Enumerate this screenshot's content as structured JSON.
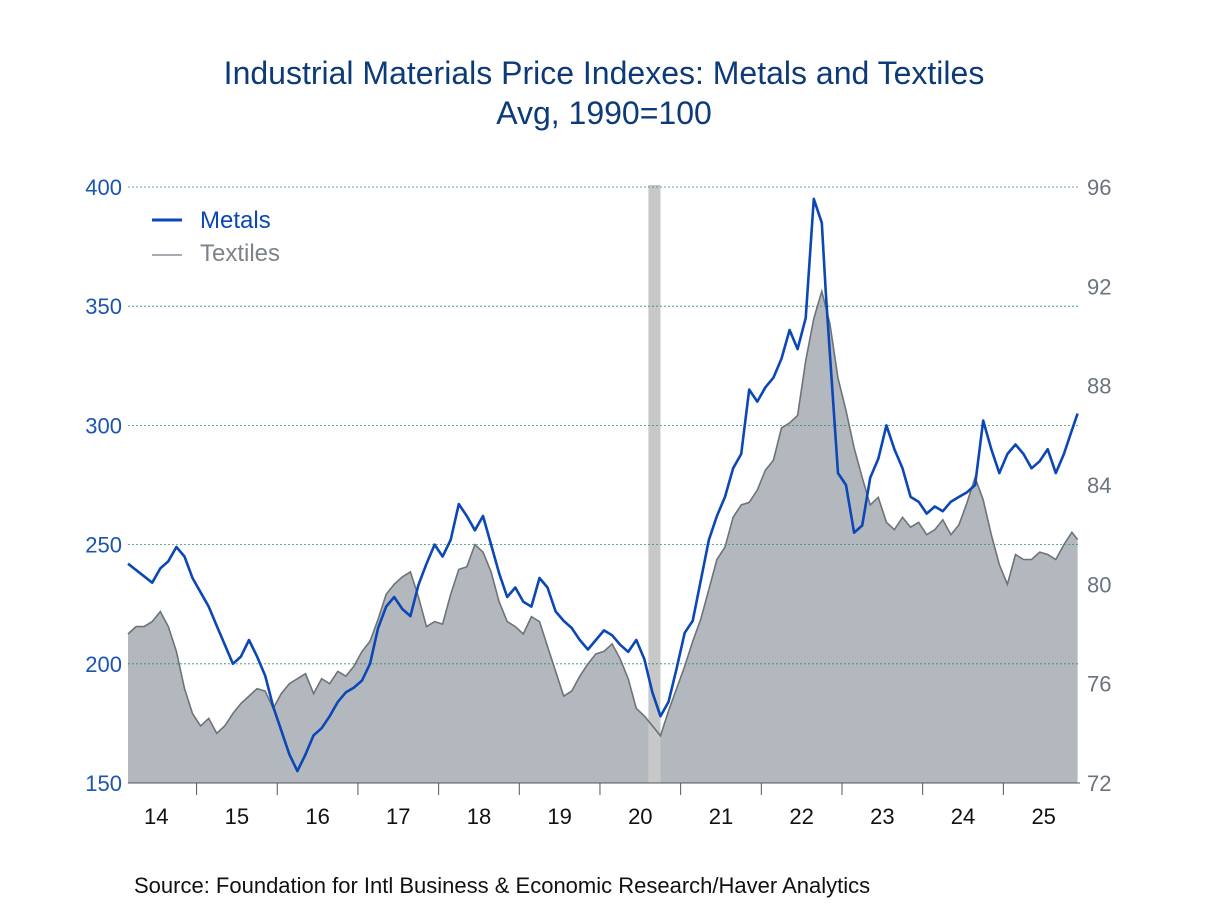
{
  "chart_data": {
    "type": "area",
    "title": "Industrial Materials Price Indexes: Metals and Textiles",
    "subtitle": "Avg, 1990=100",
    "source": "Source:  Foundation for Intl Business & Economic Research/Haver Analytics",
    "x_unit": "year",
    "xlim": [
      2013.65,
      2025.45
    ],
    "x_ticks": [
      {
        "value": 2014,
        "label": "14"
      },
      {
        "value": 2015,
        "label": "15"
      },
      {
        "value": 2016,
        "label": "16"
      },
      {
        "value": 2017,
        "label": "17"
      },
      {
        "value": 2018,
        "label": "18"
      },
      {
        "value": 2019,
        "label": "19"
      },
      {
        "value": 2020,
        "label": "20"
      },
      {
        "value": 2021,
        "label": "21"
      },
      {
        "value": 2022,
        "label": "22"
      },
      {
        "value": 2023,
        "label": "23"
      },
      {
        "value": 2024,
        "label": "24"
      },
      {
        "value": 2025,
        "label": "25"
      }
    ],
    "y_left": {
      "ylim": [
        150,
        400
      ],
      "ticks": [
        150,
        200,
        250,
        300,
        350,
        400
      ],
      "color": "#1b55b0"
    },
    "y_right": {
      "ylim": [
        72,
        96
      ],
      "ticks": [
        72,
        76,
        80,
        84,
        88,
        92,
        96
      ],
      "color": "#6b7380"
    },
    "grid": true,
    "legend_position": "top-left",
    "recession": {
      "start": 2020.1,
      "end": 2020.25
    },
    "series": [
      {
        "name": "Metals",
        "axis": "left",
        "style": "line",
        "color": "#0b47b5",
        "points": [
          [
            2013.65,
            242
          ],
          [
            2013.8,
            238
          ],
          [
            2013.95,
            234
          ],
          [
            2014.05,
            240
          ],
          [
            2014.15,
            243
          ],
          [
            2014.25,
            249
          ],
          [
            2014.35,
            245
          ],
          [
            2014.45,
            236
          ],
          [
            2014.55,
            230
          ],
          [
            2014.65,
            224
          ],
          [
            2014.75,
            216
          ],
          [
            2014.85,
            208
          ],
          [
            2014.95,
            200
          ],
          [
            2015.05,
            203
          ],
          [
            2015.15,
            210
          ],
          [
            2015.25,
            203
          ],
          [
            2015.35,
            195
          ],
          [
            2015.45,
            182
          ],
          [
            2015.55,
            172
          ],
          [
            2015.65,
            162
          ],
          [
            2015.75,
            155
          ],
          [
            2015.85,
            162
          ],
          [
            2015.95,
            170
          ],
          [
            2016.05,
            173
          ],
          [
            2016.15,
            178
          ],
          [
            2016.25,
            184
          ],
          [
            2016.35,
            188
          ],
          [
            2016.45,
            190
          ],
          [
            2016.55,
            193
          ],
          [
            2016.65,
            200
          ],
          [
            2016.75,
            215
          ],
          [
            2016.85,
            224
          ],
          [
            2016.95,
            228
          ],
          [
            2017.05,
            223
          ],
          [
            2017.15,
            220
          ],
          [
            2017.25,
            233
          ],
          [
            2017.35,
            242
          ],
          [
            2017.45,
            250
          ],
          [
            2017.55,
            245
          ],
          [
            2017.65,
            252
          ],
          [
            2017.75,
            267
          ],
          [
            2017.85,
            262
          ],
          [
            2017.95,
            256
          ],
          [
            2018.05,
            262
          ],
          [
            2018.15,
            250
          ],
          [
            2018.25,
            238
          ],
          [
            2018.35,
            228
          ],
          [
            2018.45,
            232
          ],
          [
            2018.55,
            226
          ],
          [
            2018.65,
            224
          ],
          [
            2018.75,
            236
          ],
          [
            2018.85,
            232
          ],
          [
            2018.95,
            222
          ],
          [
            2019.05,
            218
          ],
          [
            2019.15,
            215
          ],
          [
            2019.25,
            210
          ],
          [
            2019.35,
            206
          ],
          [
            2019.45,
            210
          ],
          [
            2019.55,
            214
          ],
          [
            2019.65,
            212
          ],
          [
            2019.75,
            208
          ],
          [
            2019.85,
            205
          ],
          [
            2019.95,
            210
          ],
          [
            2020.05,
            202
          ],
          [
            2020.15,
            188
          ],
          [
            2020.25,
            178
          ],
          [
            2020.35,
            184
          ],
          [
            2020.45,
            198
          ],
          [
            2020.55,
            213
          ],
          [
            2020.65,
            218
          ],
          [
            2020.75,
            235
          ],
          [
            2020.85,
            252
          ],
          [
            2020.95,
            262
          ],
          [
            2021.05,
            270
          ],
          [
            2021.15,
            282
          ],
          [
            2021.25,
            288
          ],
          [
            2021.35,
            315
          ],
          [
            2021.45,
            310
          ],
          [
            2021.55,
            316
          ],
          [
            2021.65,
            320
          ],
          [
            2021.75,
            328
          ],
          [
            2021.85,
            340
          ],
          [
            2021.95,
            332
          ],
          [
            2022.05,
            345
          ],
          [
            2022.15,
            395
          ],
          [
            2022.25,
            385
          ],
          [
            2022.3,
            355
          ],
          [
            2022.35,
            330
          ],
          [
            2022.45,
            280
          ],
          [
            2022.55,
            275
          ],
          [
            2022.65,
            255
          ],
          [
            2022.75,
            258
          ],
          [
            2022.85,
            278
          ],
          [
            2022.95,
            286
          ],
          [
            2023.05,
            300
          ],
          [
            2023.15,
            290
          ],
          [
            2023.25,
            282
          ],
          [
            2023.35,
            270
          ],
          [
            2023.45,
            268
          ],
          [
            2023.55,
            263
          ],
          [
            2023.65,
            266
          ],
          [
            2023.75,
            264
          ],
          [
            2023.85,
            268
          ],
          [
            2023.95,
            270
          ],
          [
            2024.05,
            272
          ],
          [
            2024.15,
            275
          ],
          [
            2024.25,
            302
          ],
          [
            2024.35,
            290
          ],
          [
            2024.45,
            280
          ],
          [
            2024.55,
            288
          ],
          [
            2024.65,
            292
          ],
          [
            2024.75,
            288
          ],
          [
            2024.85,
            282
          ],
          [
            2024.95,
            285
          ],
          [
            2025.05,
            290
          ],
          [
            2025.15,
            280
          ],
          [
            2025.25,
            288
          ],
          [
            2025.35,
            298
          ],
          [
            2025.42,
            305
          ]
        ]
      },
      {
        "name": "Textiles",
        "axis": "right",
        "style": "area",
        "color": "#6d7378",
        "fill": "#b3b8bf",
        "points": [
          [
            2013.65,
            78.0
          ],
          [
            2013.75,
            78.3
          ],
          [
            2013.85,
            78.3
          ],
          [
            2013.95,
            78.5
          ],
          [
            2014.05,
            78.9
          ],
          [
            2014.15,
            78.3
          ],
          [
            2014.25,
            77.3
          ],
          [
            2014.35,
            75.8
          ],
          [
            2014.45,
            74.8
          ],
          [
            2014.55,
            74.3
          ],
          [
            2014.65,
            74.6
          ],
          [
            2014.75,
            74.0
          ],
          [
            2014.85,
            74.3
          ],
          [
            2014.95,
            74.8
          ],
          [
            2015.05,
            75.2
          ],
          [
            2015.15,
            75.5
          ],
          [
            2015.25,
            75.8
          ],
          [
            2015.35,
            75.7
          ],
          [
            2015.45,
            75.0
          ],
          [
            2015.55,
            75.6
          ],
          [
            2015.65,
            76.0
          ],
          [
            2015.75,
            76.2
          ],
          [
            2015.85,
            76.4
          ],
          [
            2015.95,
            75.6
          ],
          [
            2016.05,
            76.2
          ],
          [
            2016.15,
            76.0
          ],
          [
            2016.25,
            76.5
          ],
          [
            2016.35,
            76.3
          ],
          [
            2016.45,
            76.7
          ],
          [
            2016.55,
            77.3
          ],
          [
            2016.65,
            77.7
          ],
          [
            2016.75,
            78.6
          ],
          [
            2016.85,
            79.6
          ],
          [
            2016.95,
            80.0
          ],
          [
            2017.05,
            80.3
          ],
          [
            2017.15,
            80.5
          ],
          [
            2017.25,
            79.5
          ],
          [
            2017.35,
            78.3
          ],
          [
            2017.45,
            78.5
          ],
          [
            2017.55,
            78.4
          ],
          [
            2017.65,
            79.6
          ],
          [
            2017.75,
            80.6
          ],
          [
            2017.85,
            80.7
          ],
          [
            2017.95,
            81.6
          ],
          [
            2018.05,
            81.3
          ],
          [
            2018.15,
            80.5
          ],
          [
            2018.25,
            79.3
          ],
          [
            2018.35,
            78.5
          ],
          [
            2018.45,
            78.3
          ],
          [
            2018.55,
            78.0
          ],
          [
            2018.65,
            78.7
          ],
          [
            2018.75,
            78.5
          ],
          [
            2018.85,
            77.5
          ],
          [
            2018.95,
            76.5
          ],
          [
            2019.05,
            75.5
          ],
          [
            2019.15,
            75.7
          ],
          [
            2019.25,
            76.3
          ],
          [
            2019.35,
            76.8
          ],
          [
            2019.45,
            77.2
          ],
          [
            2019.55,
            77.3
          ],
          [
            2019.65,
            77.6
          ],
          [
            2019.75,
            77.0
          ],
          [
            2019.85,
            76.2
          ],
          [
            2019.95,
            75.0
          ],
          [
            2020.05,
            74.7
          ],
          [
            2020.15,
            74.3
          ],
          [
            2020.25,
            73.9
          ],
          [
            2020.35,
            74.9
          ],
          [
            2020.45,
            75.8
          ],
          [
            2020.55,
            76.7
          ],
          [
            2020.65,
            77.7
          ],
          [
            2020.75,
            78.6
          ],
          [
            2020.85,
            79.8
          ],
          [
            2020.95,
            81.0
          ],
          [
            2021.05,
            81.5
          ],
          [
            2021.15,
            82.7
          ],
          [
            2021.25,
            83.2
          ],
          [
            2021.35,
            83.3
          ],
          [
            2021.45,
            83.8
          ],
          [
            2021.55,
            84.6
          ],
          [
            2021.65,
            85.0
          ],
          [
            2021.75,
            86.3
          ],
          [
            2021.85,
            86.5
          ],
          [
            2021.95,
            86.8
          ],
          [
            2022.05,
            89.0
          ],
          [
            2022.15,
            90.7
          ],
          [
            2022.25,
            91.8
          ],
          [
            2022.35,
            90.5
          ],
          [
            2022.45,
            88.3
          ],
          [
            2022.55,
            87.0
          ],
          [
            2022.65,
            85.5
          ],
          [
            2022.75,
            84.3
          ],
          [
            2022.85,
            83.2
          ],
          [
            2022.95,
            83.5
          ],
          [
            2023.05,
            82.5
          ],
          [
            2023.15,
            82.2
          ],
          [
            2023.25,
            82.7
          ],
          [
            2023.35,
            82.3
          ],
          [
            2023.45,
            82.5
          ],
          [
            2023.55,
            82.0
          ],
          [
            2023.65,
            82.2
          ],
          [
            2023.75,
            82.6
          ],
          [
            2023.85,
            82.0
          ],
          [
            2023.95,
            82.4
          ],
          [
            2024.05,
            83.3
          ],
          [
            2024.15,
            84.3
          ],
          [
            2024.25,
            83.4
          ],
          [
            2024.35,
            82.0
          ],
          [
            2024.45,
            80.8
          ],
          [
            2024.55,
            80.0
          ],
          [
            2024.65,
            81.2
          ],
          [
            2024.75,
            81.0
          ],
          [
            2024.85,
            81.0
          ],
          [
            2024.95,
            81.3
          ],
          [
            2025.05,
            81.2
          ],
          [
            2025.15,
            81.0
          ],
          [
            2025.25,
            81.6
          ],
          [
            2025.35,
            82.1
          ],
          [
            2025.42,
            81.8
          ]
        ]
      }
    ]
  }
}
